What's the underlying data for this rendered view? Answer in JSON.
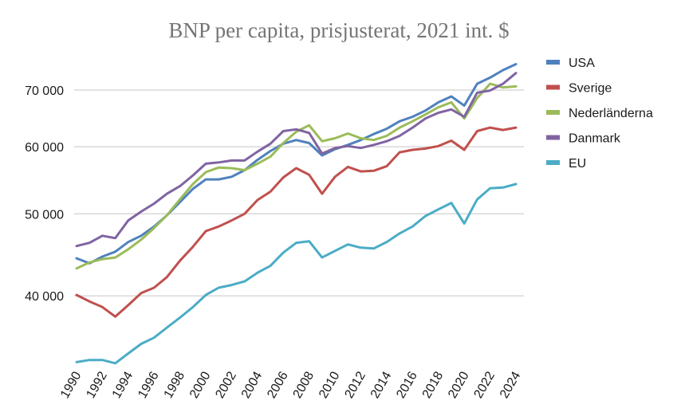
{
  "chart_data": {
    "type": "line",
    "title": "BNP per capita, prisjusterat, 2021 int. $",
    "xlabel": "",
    "ylabel": "",
    "y_scale": "log",
    "ylim": [
      33000,
      76500
    ],
    "xlim": [
      1990,
      2024
    ],
    "grid": true,
    "legend_position": "right",
    "yticks": [
      40000,
      50000,
      60000,
      70000
    ],
    "ytick_labels": [
      "40 000",
      "50 000",
      "60 000",
      "70 000"
    ],
    "xtick_labels": [
      "1990",
      "1992",
      "1994",
      "1996",
      "1998",
      "2000",
      "2002",
      "2004",
      "2006",
      "2008",
      "2010",
      "2012",
      "2014",
      "2016",
      "2018",
      "2020",
      "2022",
      "2024"
    ],
    "x": [
      1990,
      1991,
      1992,
      1993,
      1994,
      1995,
      1996,
      1997,
      1998,
      1999,
      2000,
      2001,
      2002,
      2003,
      2004,
      2005,
      2006,
      2007,
      2008,
      2009,
      2010,
      2011,
      2012,
      2013,
      2014,
      2015,
      2016,
      2017,
      2018,
      2019,
      2020,
      2021,
      2022,
      2023,
      2024
    ],
    "series": [
      {
        "name": "USA",
        "color": "#4F81BD",
        "values": [
          44300,
          43700,
          44500,
          45100,
          46300,
          47100,
          48300,
          49800,
          51600,
          53500,
          54900,
          54900,
          55300,
          56300,
          57900,
          59300,
          60500,
          61100,
          60600,
          58600,
          59600,
          60300,
          61100,
          62100,
          63000,
          64300,
          65100,
          66200,
          67700,
          68800,
          67100,
          71200,
          72400,
          73900,
          75100
        ]
      },
      {
        "name": "Sverige",
        "color": "#C0504D",
        "values": [
          40100,
          39400,
          38800,
          37800,
          39000,
          40300,
          40900,
          42100,
          44000,
          45700,
          47700,
          48300,
          49100,
          50000,
          51900,
          53100,
          55200,
          56600,
          55600,
          52800,
          55300,
          56800,
          56100,
          56200,
          56900,
          59100,
          59500,
          59700,
          60100,
          61000,
          59500,
          62600,
          63200,
          62800,
          63200
        ]
      },
      {
        "name": "Nederländerna",
        "color": "#9BBB59",
        "values": [
          43100,
          43800,
          44200,
          44400,
          45400,
          46600,
          48100,
          49800,
          52000,
          54200,
          56000,
          56700,
          56600,
          56300,
          57300,
          58400,
          60600,
          62500,
          63600,
          60900,
          61400,
          62200,
          61400,
          61100,
          61800,
          63200,
          64300,
          65500,
          66800,
          67700,
          64800,
          68500,
          71200,
          70500,
          70700
        ]
      },
      {
        "name": "Danmark",
        "color": "#8064A2",
        "values": [
          45800,
          46200,
          47100,
          46800,
          49100,
          50300,
          51400,
          52800,
          53900,
          55500,
          57300,
          57500,
          57800,
          57800,
          59200,
          60500,
          62600,
          62900,
          62300,
          58900,
          59800,
          60100,
          59800,
          60300,
          60900,
          61800,
          63200,
          64800,
          65800,
          66400,
          65100,
          69500,
          69900,
          71200,
          73300
        ]
      },
      {
        "name": "EU",
        "color": "#4BACC6",
        "values": [
          33400,
          33600,
          33600,
          33300,
          34200,
          35100,
          35700,
          36700,
          37700,
          38800,
          40100,
          40900,
          41200,
          41600,
          42600,
          43400,
          45000,
          46200,
          46400,
          44400,
          45200,
          46000,
          45600,
          45500,
          46300,
          47400,
          48300,
          49700,
          50600,
          51500,
          48700,
          52000,
          53600,
          53700,
          54200
        ]
      }
    ]
  }
}
